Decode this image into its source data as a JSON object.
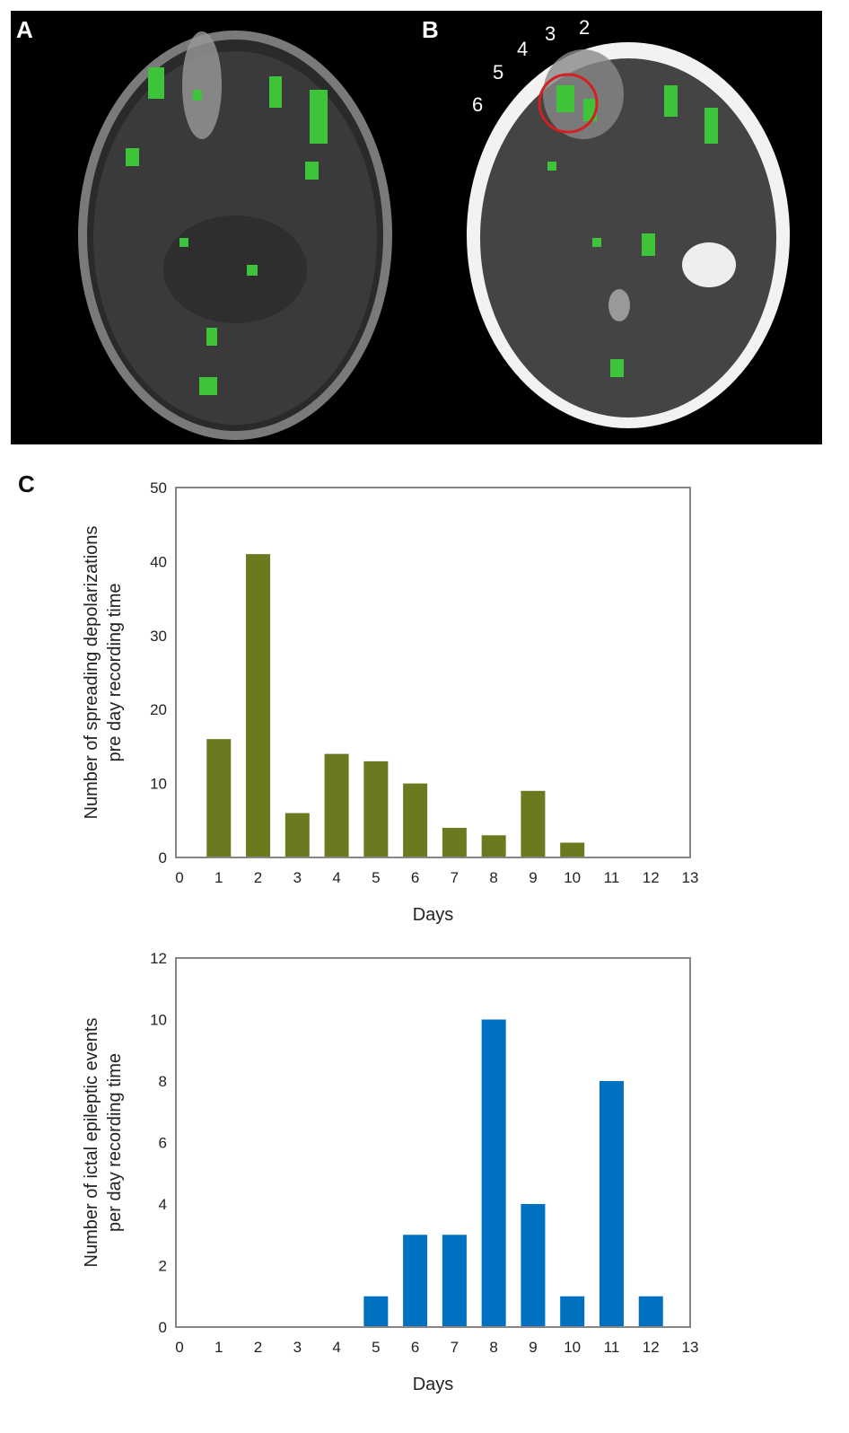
{
  "panels": {
    "a_label": "A",
    "b_label": "B",
    "c_label": "C",
    "electrode_numbers": [
      "2",
      "3",
      "4",
      "5",
      "6"
    ],
    "overlay_color": "#3ec43a",
    "highlight_color": "#d42020"
  },
  "chart_data": [
    {
      "type": "bar",
      "title": "",
      "xlabel": "Days",
      "ylabel_lines": [
        "Number of spreading depolarizations",
        "pre day recording time"
      ],
      "x_ticks": [
        "0",
        "1",
        "2",
        "3",
        "4",
        "5",
        "6",
        "7",
        "8",
        "9",
        "10",
        "11",
        "12",
        "13"
      ],
      "y_ticks": [
        "0",
        "10",
        "20",
        "30",
        "40",
        "50"
      ],
      "xlim": [
        0,
        13
      ],
      "ylim": [
        0,
        50
      ],
      "categories": [
        1,
        2,
        3,
        4,
        5,
        6,
        7,
        8,
        9,
        10
      ],
      "values": [
        16,
        41,
        6,
        14,
        13,
        10,
        4,
        3,
        9,
        2
      ],
      "color": "#6b7a1e",
      "grid": false
    },
    {
      "type": "bar",
      "title": "",
      "xlabel": "Days",
      "ylabel_lines": [
        "Number of ictal epileptic events",
        "per day recording time"
      ],
      "x_ticks": [
        "0",
        "1",
        "2",
        "3",
        "4",
        "5",
        "6",
        "7",
        "8",
        "9",
        "10",
        "11",
        "12",
        "13"
      ],
      "y_ticks": [
        "0",
        "2",
        "4",
        "6",
        "8",
        "10",
        "12"
      ],
      "xlim": [
        0,
        13
      ],
      "ylim": [
        0,
        12
      ],
      "categories": [
        5,
        6,
        7,
        8,
        9,
        10,
        11,
        12
      ],
      "values": [
        1,
        3,
        3,
        10,
        4,
        1,
        8,
        1
      ],
      "color": "#0070c0",
      "grid": false
    }
  ]
}
